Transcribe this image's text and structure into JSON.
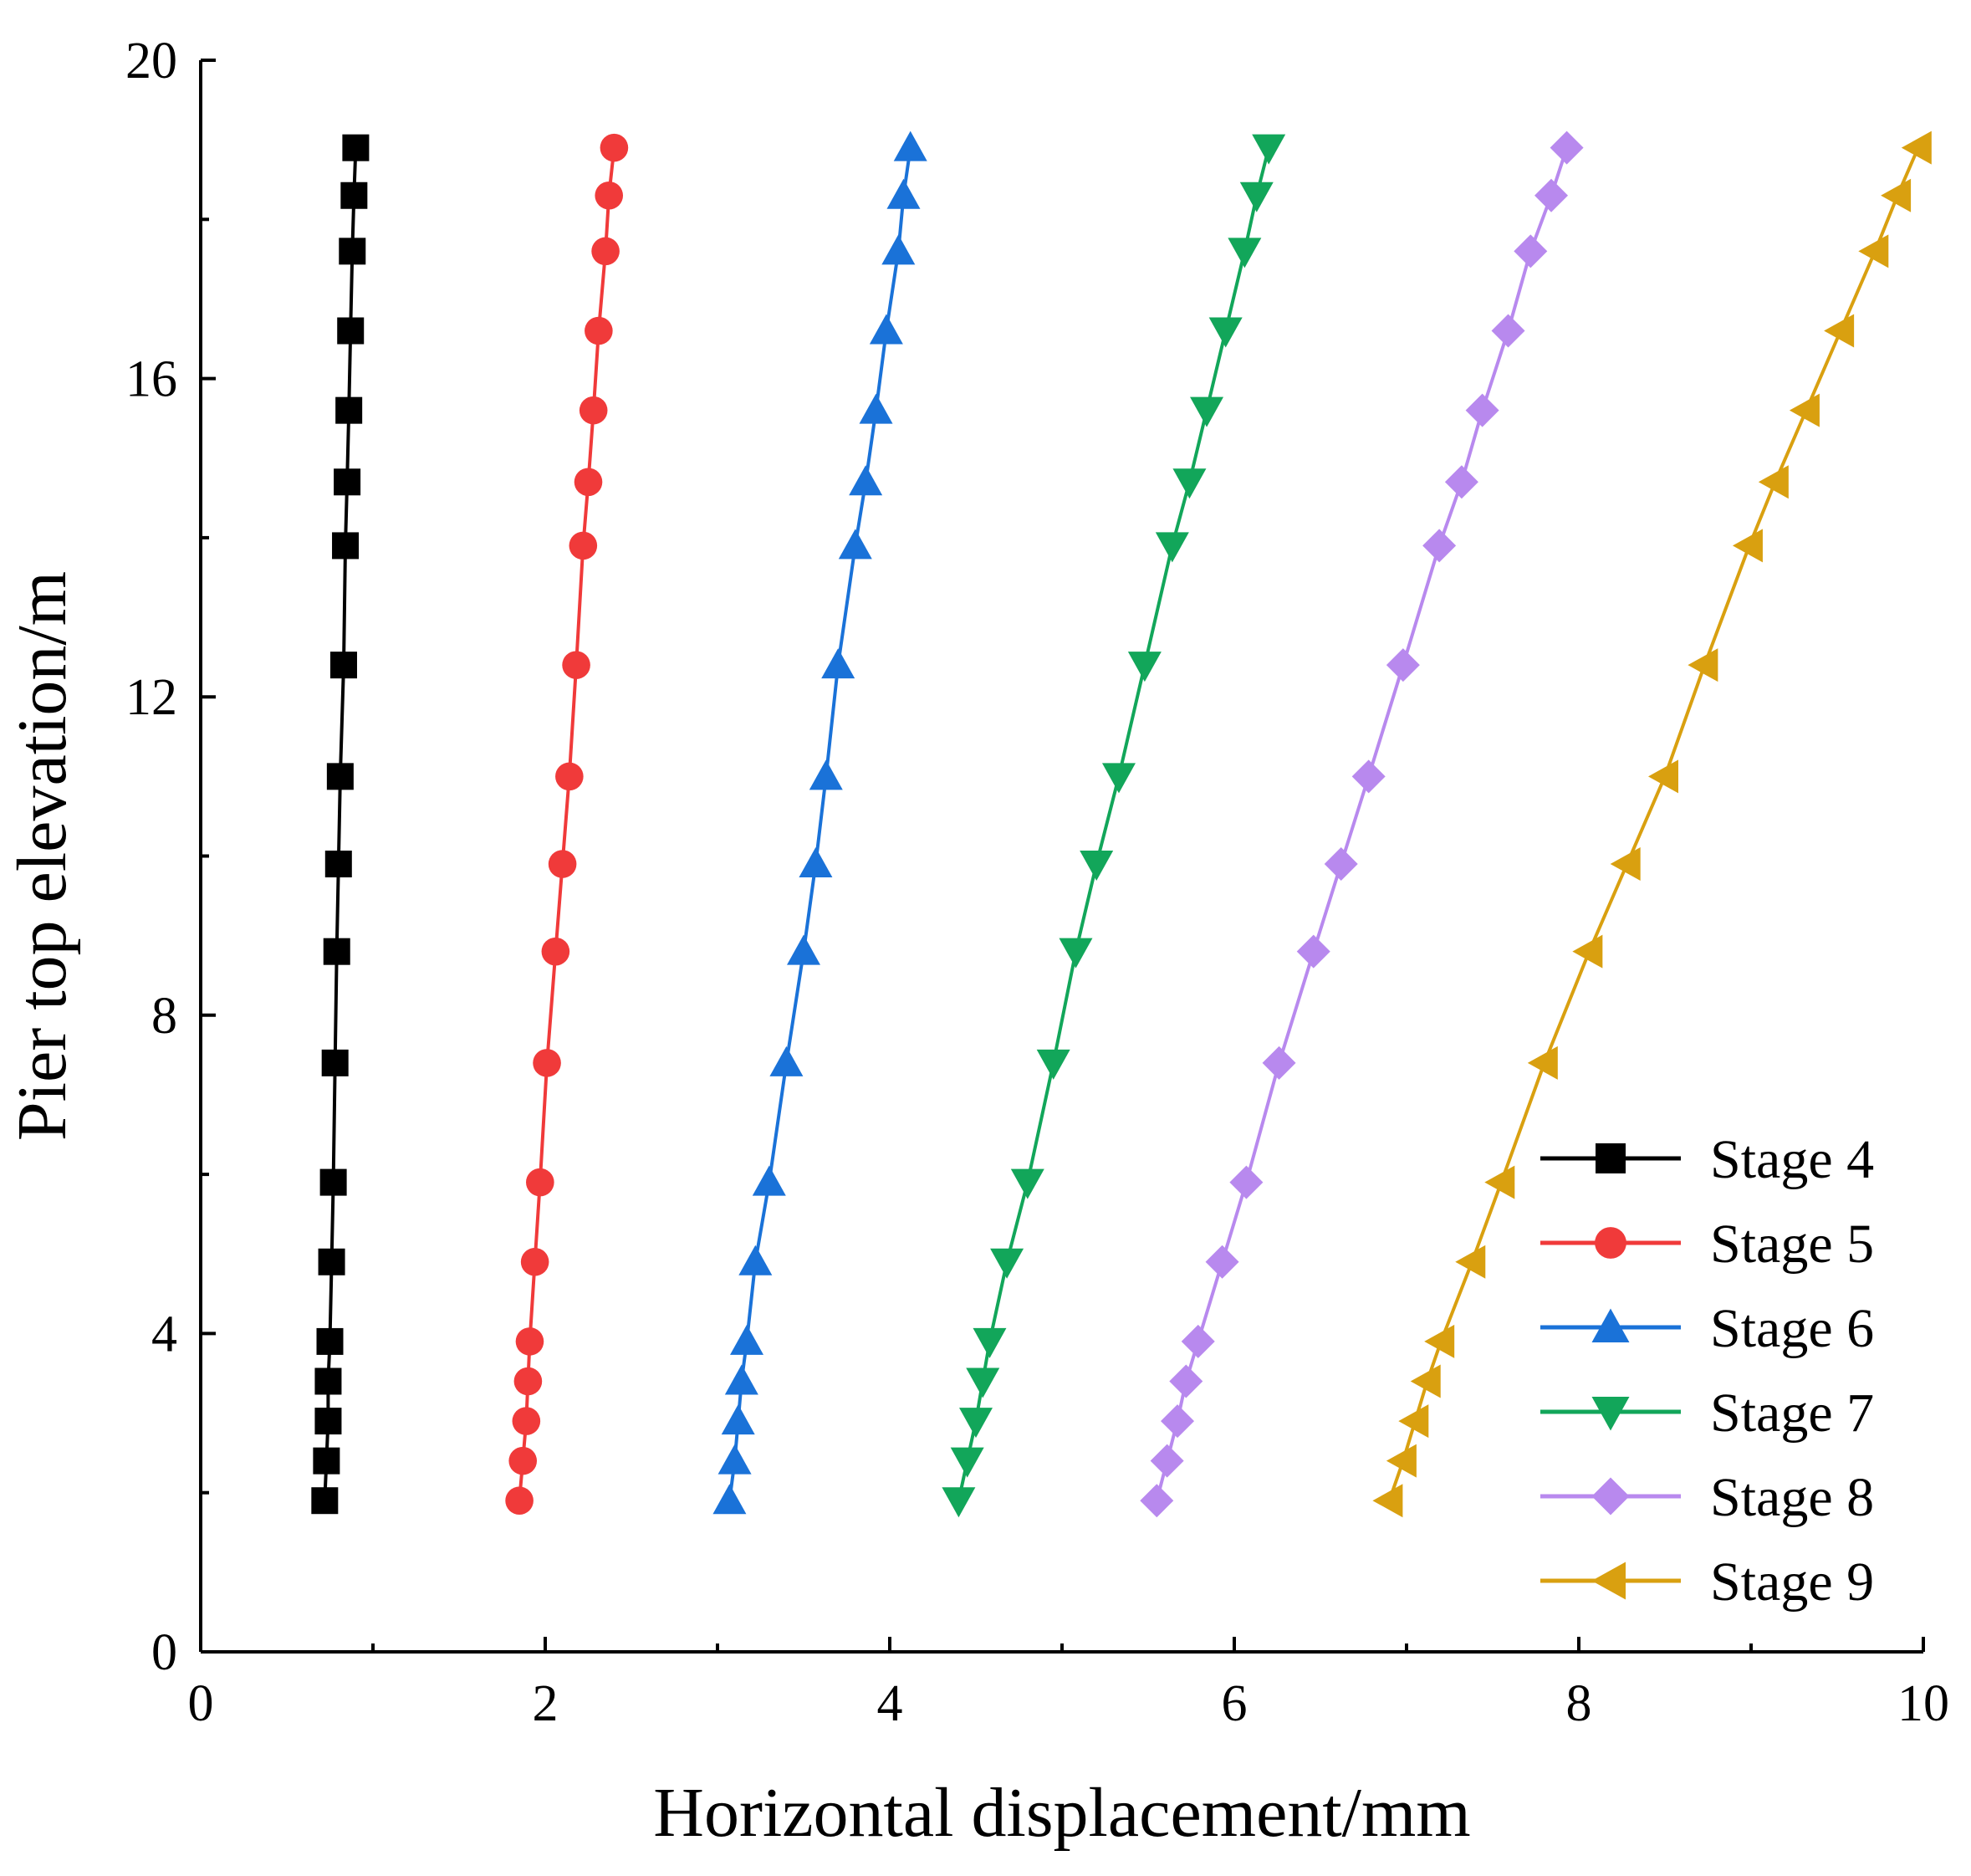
{
  "chart_data": {
    "type": "line",
    "title": "",
    "xlabel": "Horizontal displacement/mm",
    "ylabel": "Pier top elevation/m",
    "xlim": [
      0,
      10
    ],
    "ylim": [
      0,
      20
    ],
    "x_ticks": [
      0,
      2,
      4,
      6,
      8,
      10
    ],
    "x_tick_labels": [
      "0",
      "2",
      "4",
      "6",
      "8",
      "10"
    ],
    "y_ticks": [
      0,
      4,
      8,
      12,
      16,
      20
    ],
    "y_tick_labels": [
      "0",
      "4",
      "8",
      "12",
      "16",
      "20"
    ],
    "grid": false,
    "legend_position": "bottom-right",
    "y": [
      1.9,
      2.4,
      2.9,
      3.4,
      3.9,
      4.9,
      5.9,
      7.4,
      8.8,
      9.9,
      11.0,
      12.4,
      13.9,
      14.7,
      15.6,
      16.6,
      17.6,
      18.3,
      18.9
    ],
    "series": [
      {
        "name": "Stage 4",
        "color": "#000000",
        "marker": "square",
        "x": [
          0.72,
          0.73,
          0.74,
          0.74,
          0.75,
          0.76,
          0.77,
          0.78,
          0.79,
          0.8,
          0.81,
          0.83,
          0.84,
          0.85,
          0.86,
          0.87,
          0.88,
          0.89,
          0.9
        ]
      },
      {
        "name": "Stage 5",
        "color": "#f03a3a",
        "marker": "circle",
        "x": [
          1.85,
          1.87,
          1.89,
          1.9,
          1.91,
          1.94,
          1.97,
          2.01,
          2.06,
          2.1,
          2.14,
          2.18,
          2.22,
          2.25,
          2.28,
          2.31,
          2.35,
          2.37,
          2.4
        ]
      },
      {
        "name": "Stage 6",
        "color": "#1a72d8",
        "marker": "triangle-up",
        "x": [
          3.07,
          3.1,
          3.12,
          3.14,
          3.17,
          3.22,
          3.3,
          3.4,
          3.5,
          3.57,
          3.63,
          3.7,
          3.8,
          3.86,
          3.92,
          3.98,
          4.05,
          4.08,
          4.12
        ]
      },
      {
        "name": "Stage 7",
        "color": "#12a65a",
        "marker": "triangle-down",
        "x": [
          4.4,
          4.45,
          4.5,
          4.54,
          4.58,
          4.68,
          4.8,
          4.95,
          5.08,
          5.2,
          5.33,
          5.48,
          5.64,
          5.74,
          5.84,
          5.95,
          6.06,
          6.13,
          6.2
        ]
      },
      {
        "name": "Stage 8",
        "color": "#b889ee",
        "marker": "diamond",
        "x": [
          5.55,
          5.61,
          5.67,
          5.72,
          5.79,
          5.93,
          6.07,
          6.26,
          6.46,
          6.62,
          6.78,
          6.98,
          7.19,
          7.32,
          7.44,
          7.59,
          7.72,
          7.84,
          7.93
        ]
      },
      {
        "name": "Stage 9",
        "color": "#d9a010",
        "marker": "triangle-left",
        "x": [
          6.9,
          6.98,
          7.05,
          7.12,
          7.2,
          7.38,
          7.55,
          7.8,
          8.06,
          8.28,
          8.5,
          8.73,
          8.99,
          9.14,
          9.32,
          9.52,
          9.72,
          9.85,
          9.97
        ]
      }
    ]
  }
}
